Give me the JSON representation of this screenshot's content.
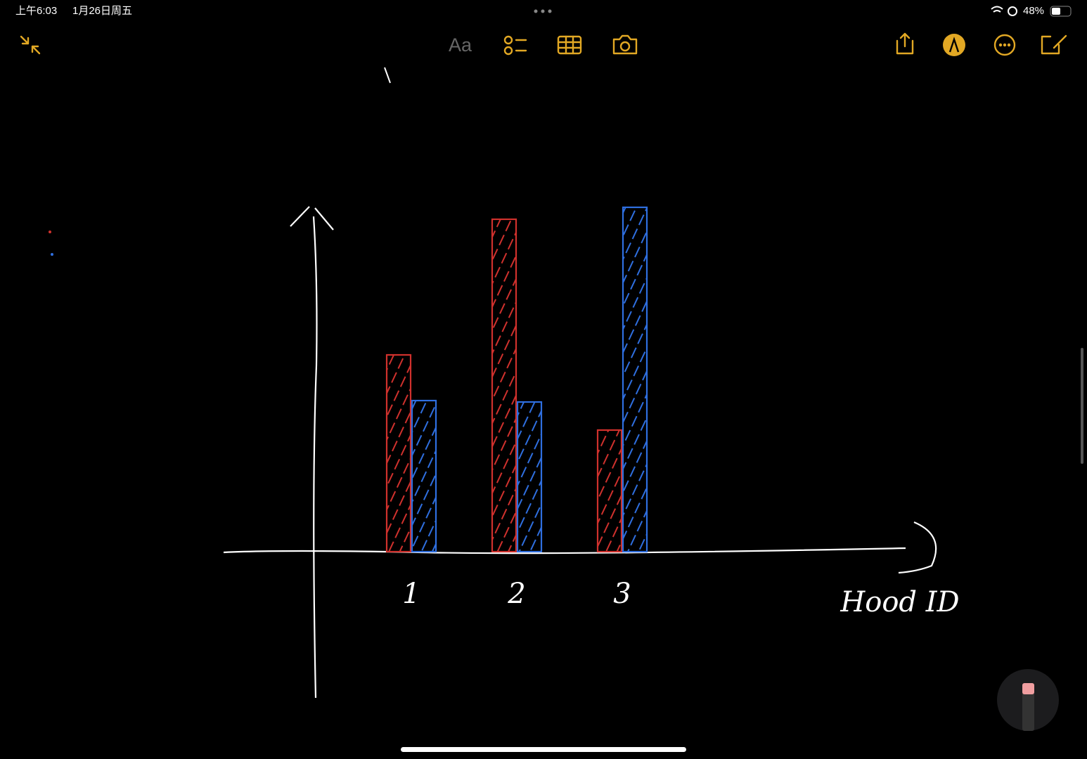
{
  "status_bar": {
    "time": "上午6:03",
    "date": "1月26日周五",
    "battery": "48%"
  },
  "toolbar": {
    "format_button": "Aa"
  },
  "chart_data": {
    "type": "bar",
    "categories": [
      "1",
      "2",
      "3"
    ],
    "x_label": "Hood ID",
    "series": [
      {
        "color": "#d0312d",
        "values": [
          280,
          473,
          173
        ]
      },
      {
        "color": "#2f6fe0",
        "values": [
          215,
          213,
          490
        ]
      }
    ]
  }
}
